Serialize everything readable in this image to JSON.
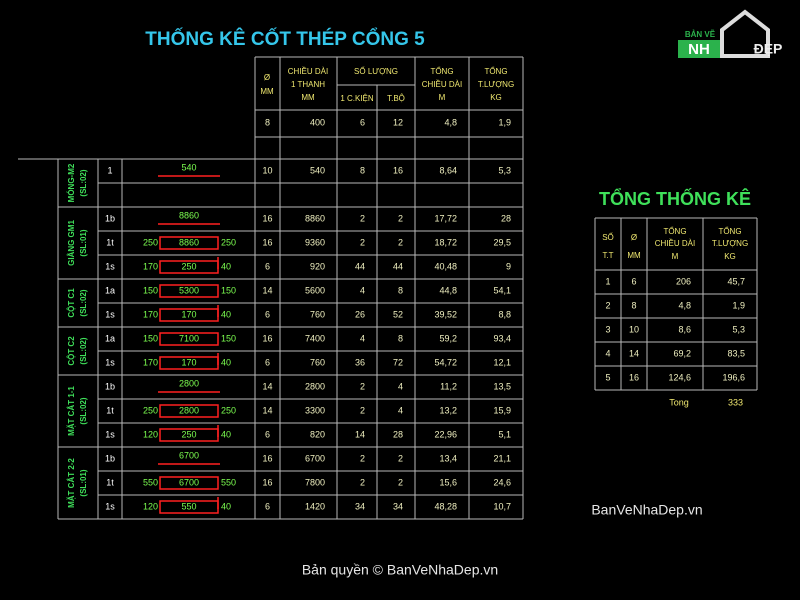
{
  "title": "THỐNG KÊ CỐT THÉP  CỔNG 5",
  "main_table": {
    "headers": [
      [
        "Ø",
        "MM"
      ],
      [
        "CHIỀU DÀI",
        "1 THANH",
        "MM"
      ],
      [
        "SỐ LƯỢNG"
      ],
      [
        "1 C.KIỆN"
      ],
      [
        "T.BỘ"
      ],
      [
        "TỔNG",
        "CHIỀU DÀI",
        "M"
      ],
      [
        "TỔNG",
        "T.LƯỢNG",
        "KG"
      ]
    ],
    "top_row": [
      "8",
      "400",
      "6",
      "12",
      "4,8",
      "1,9"
    ],
    "groups": [
      {
        "label": [
          "MÓNG-M2",
          "(SL:02)"
        ],
        "rows": [
          {
            "mark": "1",
            "shape": {
              "text": "540"
            },
            "cells": [
              "10",
              "540",
              "8",
              "16",
              "8,64",
              "5,3"
            ]
          }
        ]
      },
      {
        "label": [
          "GIẰNG GM1",
          "(SL:01)"
        ],
        "rows": [
          {
            "mark": "1b",
            "shape": {
              "text": "8860"
            },
            "cells": [
              "16",
              "8860",
              "2",
              "2",
              "17,72",
              "28"
            ]
          },
          {
            "mark": "1t",
            "shape": {
              "left": "250",
              "text": "8860",
              "right": "250"
            },
            "cells": [
              "16",
              "9360",
              "2",
              "2",
              "18,72",
              "29,5"
            ]
          },
          {
            "mark": "1s",
            "shape": {
              "left": "170",
              "text": "250",
              "right": "40"
            },
            "cells": [
              "6",
              "920",
              "44",
              "44",
              "40,48",
              "9"
            ]
          }
        ]
      },
      {
        "label": [
          "CỘT C1",
          "(SL:02)"
        ],
        "rows": [
          {
            "mark": "1a",
            "shape": {
              "left": "150",
              "text": "5300",
              "right": "150"
            },
            "cells": [
              "14",
              "5600",
              "4",
              "8",
              "44,8",
              "54,1"
            ]
          },
          {
            "mark": "1s",
            "shape": {
              "left": "170",
              "text": "170",
              "right": "40"
            },
            "cells": [
              "6",
              "760",
              "26",
              "52",
              "39,52",
              "8,8"
            ]
          }
        ]
      },
      {
        "label": [
          "CỘT C2",
          "(SL:02)"
        ],
        "rows": [
          {
            "mark": "1a",
            "shape": {
              "left": "150",
              "text": "7100",
              "right": "150"
            },
            "cells": [
              "16",
              "7400",
              "4",
              "8",
              "59,2",
              "93,4"
            ]
          },
          {
            "mark": "1s",
            "shape": {
              "left": "170",
              "text": "170",
              "right": "40"
            },
            "cells": [
              "6",
              "760",
              "36",
              "72",
              "54,72",
              "12,1"
            ]
          }
        ]
      },
      {
        "label": [
          "MẶT CẮT 1-1",
          "(SL:02)"
        ],
        "rows": [
          {
            "mark": "1b",
            "shape": {
              "text": "2800"
            },
            "cells": [
              "14",
              "2800",
              "2",
              "4",
              "11,2",
              "13,5"
            ]
          },
          {
            "mark": "1t",
            "shape": {
              "left": "250",
              "text": "2800",
              "right": "250"
            },
            "cells": [
              "14",
              "3300",
              "2",
              "4",
              "13,2",
              "15,9"
            ]
          },
          {
            "mark": "1s",
            "shape": {
              "left": "120",
              "text": "250",
              "right": "40"
            },
            "cells": [
              "6",
              "820",
              "14",
              "28",
              "22,96",
              "5,1"
            ]
          }
        ]
      },
      {
        "label": [
          "MẶT CẮT 2-2",
          "(SL:01)"
        ],
        "rows": [
          {
            "mark": "1b",
            "shape": {
              "text": "6700"
            },
            "cells": [
              "16",
              "6700",
              "2",
              "2",
              "13,4",
              "21,1"
            ]
          },
          {
            "mark": "1t",
            "shape": {
              "left": "550",
              "text": "6700",
              "right": "550"
            },
            "cells": [
              "16",
              "7800",
              "2",
              "2",
              "15,6",
              "24,6"
            ]
          },
          {
            "mark": "1s",
            "shape": {
              "left": "120",
              "text": "550",
              "right": "40"
            },
            "cells": [
              "6",
              "1420",
              "34",
              "34",
              "48,28",
              "10,7"
            ]
          }
        ]
      }
    ]
  },
  "summary": {
    "title": "TỔNG THỐNG KÊ",
    "headers": [
      [
        "SỐ",
        "T.T"
      ],
      [
        "Ø",
        "MM"
      ],
      [
        "TỔNG",
        "CHIỀU DÀI",
        "M"
      ],
      [
        "TỔNG",
        "T.LƯỢNG",
        "KG"
      ]
    ],
    "rows": [
      [
        "1",
        "6",
        "206",
        "45,7"
      ],
      [
        "2",
        "8",
        "4,8",
        "1,9"
      ],
      [
        "3",
        "10",
        "8,6",
        "5,3"
      ],
      [
        "4",
        "14",
        "69,2",
        "83,5"
      ],
      [
        "5",
        "16",
        "124,6",
        "196,6"
      ]
    ],
    "footer": [
      "Tong",
      "333"
    ]
  },
  "logo": {
    "top": "BẢN VẼ",
    "left": "NH",
    "right": "ĐẸP"
  },
  "watermark": "BanVeNhaDep.vn",
  "copyright": "Bản quyền © BanVeNhaDep.vn"
}
